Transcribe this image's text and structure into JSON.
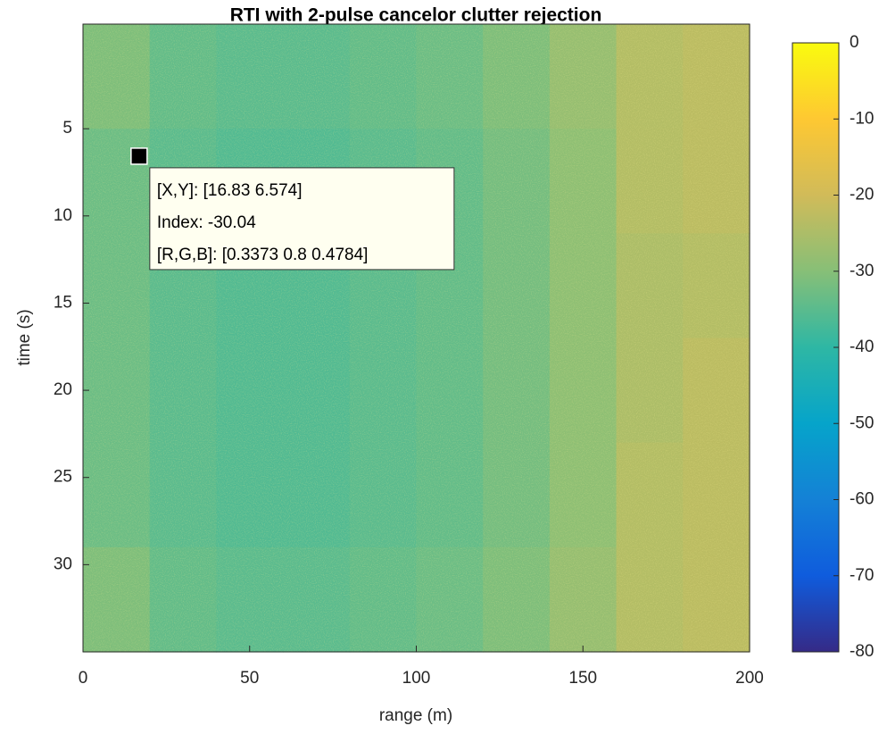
{
  "chart_data": {
    "type": "heatmap",
    "title": "RTI with 2-pulse cancelor clutter rejection",
    "x_label": "range (m)",
    "y_label": "time (s)",
    "xlim": [
      0,
      200
    ],
    "ylim": [
      -1,
      35
    ],
    "y_reversed": true,
    "xticks": [
      0,
      50,
      100,
      150,
      200
    ],
    "yticks": [
      5,
      10,
      15,
      20,
      25,
      30
    ],
    "clim": [
      -80,
      0
    ],
    "cticks": [
      0,
      -10,
      -20,
      -30,
      -40,
      -50,
      -60,
      -70,
      -80
    ],
    "colormap": [
      "#352a87",
      "#0f5cdd",
      "#1481d6",
      "#06a4ca",
      "#2eb7a4",
      "#87bf77",
      "#d1bb59",
      "#fec832",
      "#f9fb0e"
    ],
    "z": [
      [
        -31,
        -34,
        -35,
        -35,
        -34,
        -33,
        -31,
        -28,
        -24,
        -23
      ],
      [
        -33,
        -35,
        -36,
        -36,
        -35,
        -34,
        -32,
        -29,
        -24,
        -23
      ],
      [
        -33,
        -35,
        -36,
        -36,
        -35,
        -34,
        -32,
        -29,
        -25,
        -24
      ],
      [
        -33,
        -35,
        -36,
        -36,
        -35,
        -34,
        -32,
        -29,
        -25,
        -23
      ],
      [
        -33,
        -35,
        -36,
        -36,
        -35,
        -34,
        -32,
        -29,
        -24,
        -23
      ],
      [
        -31,
        -34,
        -35,
        -35,
        -34,
        -33,
        -31,
        -28,
        -24,
        -23
      ]
    ],
    "datatip": {
      "x": 16.83,
      "y": 6.574,
      "lines": [
        "[X,Y]: [16.83 6.574]",
        "Index: -30.04",
        "[R,G,B]: [0.3373 0.8 0.4784]"
      ]
    }
  }
}
